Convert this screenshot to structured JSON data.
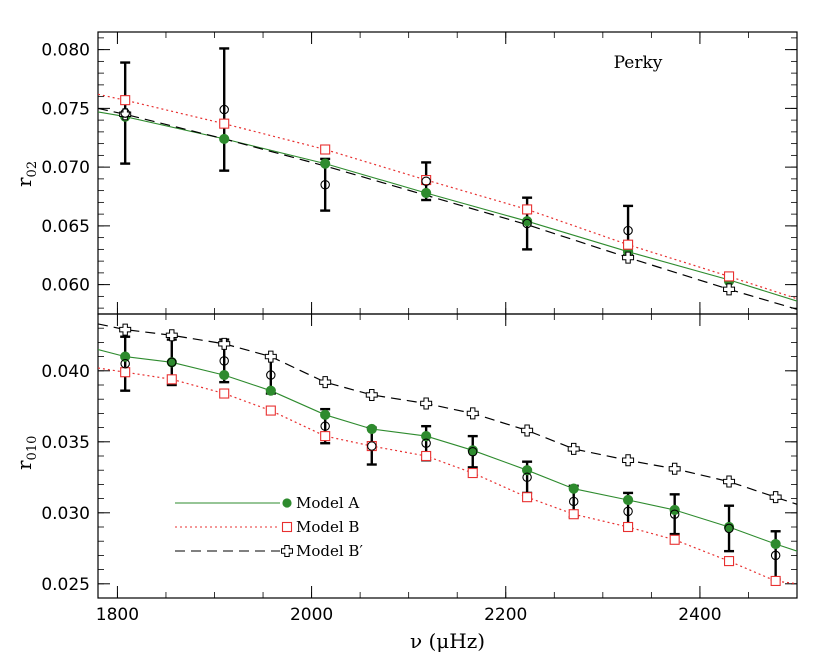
{
  "chart_data": [
    {
      "type": "line",
      "panel": "top",
      "ylabel": "r",
      "ylabel_sub": "02",
      "annotation": "Perky",
      "xlim": [
        1780,
        2500
      ],
      "ylim": [
        0.0575,
        0.0815
      ],
      "yticks": [
        "0.060",
        "0.065",
        "0.070",
        "0.075",
        "0.080"
      ],
      "yticks_values": [
        0.06,
        0.065,
        0.07,
        0.075,
        0.08
      ],
      "observed": {
        "x": [
          1808,
          1910,
          2014,
          2118,
          2222,
          2326
        ],
        "y": [
          0.0746,
          0.0749,
          0.0685,
          0.0688,
          0.0652,
          0.0646
        ],
        "err": [
          0.0043,
          0.0052,
          0.0022,
          0.0016,
          0.0022,
          0.0021
        ]
      },
      "series": [
        {
          "name": "Model A",
          "color": "#2e8b2e",
          "dash": "",
          "marker": "filled-circle",
          "line_x": [
            1780,
            1808,
            1910,
            2014,
            2118,
            2222,
            2326,
            2430,
            2500
          ],
          "line_y": [
            0.0747,
            0.0743,
            0.0724,
            0.0703,
            0.0678,
            0.0654,
            0.0628,
            0.0604,
            0.0586
          ],
          "mx": [
            1808,
            1910,
            2014,
            2118,
            2222,
            2326,
            2430
          ],
          "my": [
            0.0743,
            0.0724,
            0.0703,
            0.0678,
            0.0654,
            0.0628,
            0.0603
          ]
        },
        {
          "name": "Model B",
          "color": "#e83030",
          "dash": "2,3",
          "marker": "open-square",
          "line_x": [
            1780,
            1808,
            1910,
            2014,
            2118,
            2222,
            2326,
            2430,
            2500
          ],
          "line_y": [
            0.0762,
            0.0757,
            0.0737,
            0.0715,
            0.0689,
            0.0664,
            0.0634,
            0.0607,
            0.0588
          ],
          "mx": [
            1808,
            1910,
            2014,
            2118,
            2222,
            2326,
            2430
          ],
          "my": [
            0.0757,
            0.0737,
            0.0715,
            0.0689,
            0.0664,
            0.0634,
            0.0607
          ]
        },
        {
          "name": "Model B′",
          "color": "#000000",
          "dash": "10,6",
          "marker": "open-plus",
          "line_x": [
            1780,
            1808,
            1910,
            2014,
            2118,
            2222,
            2326,
            2430,
            2500
          ],
          "line_y": [
            0.075,
            0.0745,
            0.0724,
            0.0701,
            0.0676,
            0.0651,
            0.0623,
            0.0596,
            0.0579
          ],
          "mx": [
            1808,
            2326,
            2430
          ],
          "my": [
            0.0745,
            0.0623,
            0.0596
          ]
        }
      ]
    },
    {
      "type": "line",
      "panel": "bottom",
      "xlabel": "ν (μHz)",
      "ylabel": "r",
      "ylabel_sub": "010",
      "xlim": [
        1780,
        2500
      ],
      "ylim": [
        0.024,
        0.044
      ],
      "xticks": [
        "1800",
        "2000",
        "2200",
        "2400"
      ],
      "xticks_values": [
        1800,
        2000,
        2200,
        2400
      ],
      "yticks": [
        "0.025",
        "0.030",
        "0.035",
        "0.040"
      ],
      "yticks_values": [
        0.025,
        0.03,
        0.035,
        0.04
      ],
      "observed": {
        "x": [
          1808,
          1856,
          1910,
          1958,
          2014,
          2062,
          2118,
          2166,
          2222,
          2270,
          2326,
          2374,
          2430,
          2478
        ],
        "y": [
          0.0405,
          0.0406,
          0.0407,
          0.0397,
          0.0361,
          0.0347,
          0.0349,
          0.0343,
          0.0325,
          0.0308,
          0.0301,
          0.0299,
          0.0289,
          0.027
        ],
        "err": [
          0.0019,
          0.0016,
          0.0015,
          0.0013,
          0.0012,
          0.0013,
          0.0012,
          0.0011,
          0.0011,
          0.0011,
          0.0013,
          0.0014,
          0.0016,
          0.0017
        ]
      },
      "series": [
        {
          "name": "Model A",
          "color": "#2e8b2e",
          "dash": "",
          "marker": "filled-circle",
          "line_x": [
            1780,
            1808,
            1856,
            1910,
            1958,
            2014,
            2062,
            2118,
            2166,
            2222,
            2270,
            2326,
            2374,
            2430,
            2478,
            2500
          ],
          "line_y": [
            0.0415,
            0.041,
            0.0406,
            0.0397,
            0.0386,
            0.0369,
            0.0359,
            0.0354,
            0.0344,
            0.033,
            0.0317,
            0.0309,
            0.0302,
            0.029,
            0.0278,
            0.0273
          ],
          "mx": [
            1808,
            1856,
            1910,
            1958,
            2014,
            2062,
            2118,
            2166,
            2222,
            2270,
            2326,
            2374,
            2430,
            2478
          ],
          "my": [
            0.041,
            0.0406,
            0.0397,
            0.0386,
            0.0369,
            0.0359,
            0.0354,
            0.0344,
            0.033,
            0.0317,
            0.0309,
            0.0302,
            0.029,
            0.0278
          ]
        },
        {
          "name": "Model B",
          "color": "#e83030",
          "dash": "2,3",
          "marker": "open-square",
          "line_x": [
            1780,
            1808,
            1856,
            1910,
            1958,
            2014,
            2062,
            2118,
            2166,
            2222,
            2270,
            2326,
            2374,
            2430,
            2478,
            2500
          ],
          "line_y": [
            0.0402,
            0.0399,
            0.0394,
            0.0384,
            0.0372,
            0.0354,
            0.0347,
            0.034,
            0.0328,
            0.0311,
            0.0299,
            0.029,
            0.0281,
            0.0266,
            0.0252,
            0.025
          ],
          "mx": [
            1808,
            1856,
            1910,
            1958,
            2014,
            2062,
            2118,
            2166,
            2222,
            2270,
            2326,
            2374,
            2430,
            2478
          ],
          "my": [
            0.0399,
            0.0394,
            0.0384,
            0.0372,
            0.0354,
            0.0347,
            0.034,
            0.0328,
            0.0311,
            0.0299,
            0.029,
            0.0281,
            0.0266,
            0.0252
          ]
        },
        {
          "name": "Model B′",
          "color": "#000000",
          "dash": "10,6",
          "marker": "open-plus",
          "line_x": [
            1780,
            1808,
            1856,
            1910,
            1958,
            2014,
            2062,
            2118,
            2166,
            2222,
            2270,
            2326,
            2374,
            2430,
            2478,
            2500
          ],
          "line_y": [
            0.0433,
            0.0429,
            0.0425,
            0.0419,
            0.041,
            0.0392,
            0.0383,
            0.0377,
            0.037,
            0.0358,
            0.0345,
            0.0337,
            0.0331,
            0.0322,
            0.0311,
            0.0306
          ],
          "mx": [
            1808,
            1856,
            1910,
            1958,
            2014,
            2062,
            2118,
            2166,
            2222,
            2270,
            2326,
            2374,
            2430,
            2478
          ],
          "my": [
            0.0429,
            0.0425,
            0.0419,
            0.041,
            0.0392,
            0.0383,
            0.0377,
            0.037,
            0.0358,
            0.0345,
            0.0337,
            0.0331,
            0.0322,
            0.0311
          ]
        }
      ],
      "legend": {
        "placement": "bottom-left",
        "entries": [
          "Model A",
          "Model B",
          "Model B′"
        ]
      }
    }
  ]
}
